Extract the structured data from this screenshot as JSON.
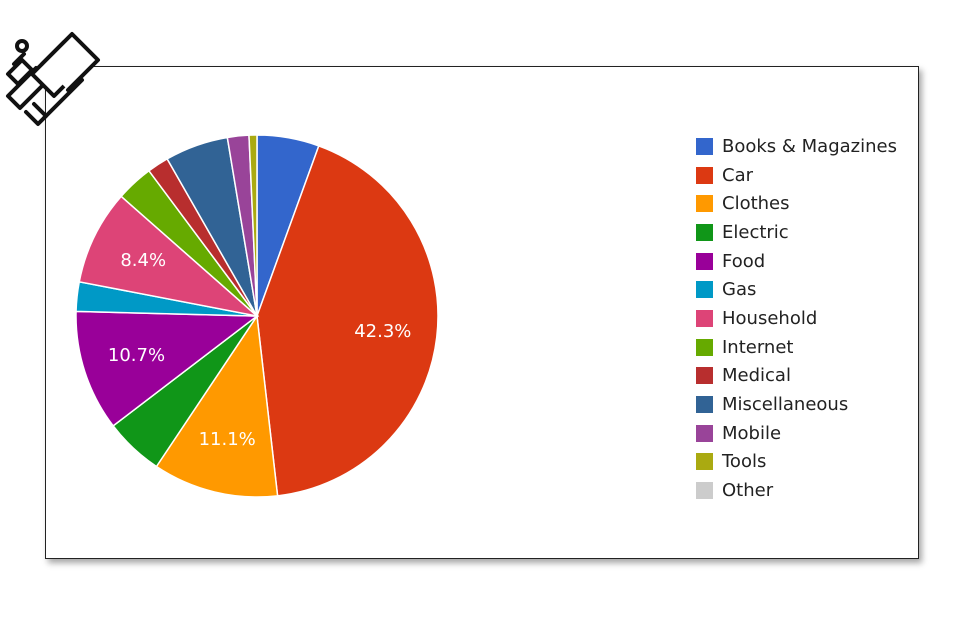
{
  "chart_data": {
    "type": "pie",
    "title": "",
    "legend_position": "right",
    "slices": [
      {
        "name": "Books & Magazines",
        "value": 5.5,
        "color": "#3366cc",
        "label": ""
      },
      {
        "name": "Car",
        "value": 42.3,
        "color": "#dc3912",
        "label": "42.3%"
      },
      {
        "name": "Clothes",
        "value": 11.1,
        "color": "#ff9900",
        "label": "11.1%"
      },
      {
        "name": "Electric",
        "value": 5.2,
        "color": "#109618",
        "label": ""
      },
      {
        "name": "Food",
        "value": 10.7,
        "color": "#990099",
        "label": "10.7%"
      },
      {
        "name": "Gas",
        "value": 2.6,
        "color": "#0099c6",
        "label": ""
      },
      {
        "name": "Household",
        "value": 8.4,
        "color": "#dd4477",
        "label": "8.4%"
      },
      {
        "name": "Internet",
        "value": 3.3,
        "color": "#66aa00",
        "label": ""
      },
      {
        "name": "Medical",
        "value": 1.9,
        "color": "#b82e2e",
        "label": ""
      },
      {
        "name": "Miscellaneous",
        "value": 5.6,
        "color": "#316395",
        "label": ""
      },
      {
        "name": "Mobile",
        "value": 1.9,
        "color": "#994499",
        "label": ""
      },
      {
        "name": "Tools",
        "value": 0.7,
        "color": "#aaaa11",
        "label": ""
      },
      {
        "name": "Other",
        "value": 0.0,
        "color": "#cccccc",
        "label": ""
      }
    ]
  }
}
